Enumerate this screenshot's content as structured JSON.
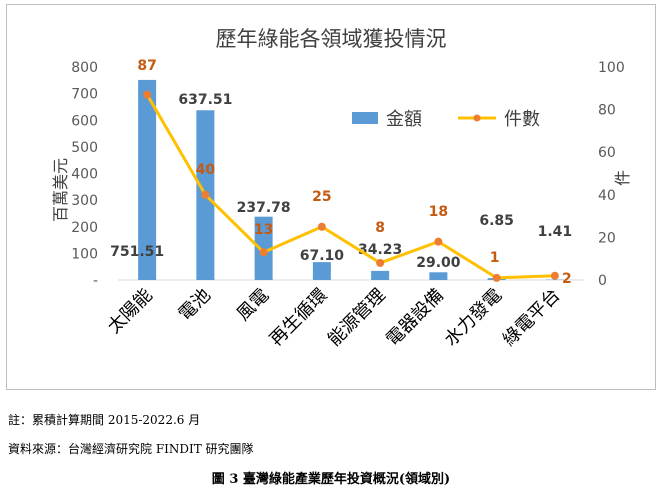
{
  "chart_data": {
    "type": "bar",
    "title": "歷年綠能各領域獲投情況",
    "categories": [
      "太陽能",
      "電池",
      "風電",
      "再生循環",
      "能源管理",
      "電器設備",
      "水力發電",
      "綠電平台"
    ],
    "series": [
      {
        "name": "金額",
        "type": "bar",
        "axis": "left",
        "color": "#5b9bd5",
        "values": [
          751.51,
          637.51,
          237.78,
          67.1,
          34.23,
          29.0,
          6.85,
          1.41
        ],
        "labels": [
          "751.51",
          "637.51",
          "237.78",
          "67.10",
          "34.23",
          "29.00",
          "6.85",
          "1.41"
        ]
      },
      {
        "name": "件數",
        "type": "line",
        "axis": "right",
        "color": "#ffc000",
        "marker_color": "#ed7d31",
        "values": [
          87,
          40,
          13,
          25,
          8,
          18,
          1,
          2
        ],
        "labels": [
          "87",
          "40",
          "13",
          "25",
          "8",
          "18",
          "1",
          "2"
        ]
      }
    ],
    "ylabel": "百萬美元",
    "y2label": "件",
    "ylim": [
      0,
      800
    ],
    "y2lim": [
      0,
      100
    ],
    "yticks": [
      "-",
      "100",
      "200",
      "300",
      "400",
      "500",
      "600",
      "700",
      "800"
    ],
    "y2ticks": [
      "0",
      "20",
      "40",
      "60",
      "80",
      "100"
    ],
    "legend_position": "top-right",
    "grid": false
  },
  "captions": {
    "note": "註：累積計算期間 2015-2022.6 月",
    "source": "資料來源：台灣經濟研究院 FINDIT 研究團隊",
    "figure": "圖 3  臺灣綠能產業歷年投資概況(領域別)"
  }
}
